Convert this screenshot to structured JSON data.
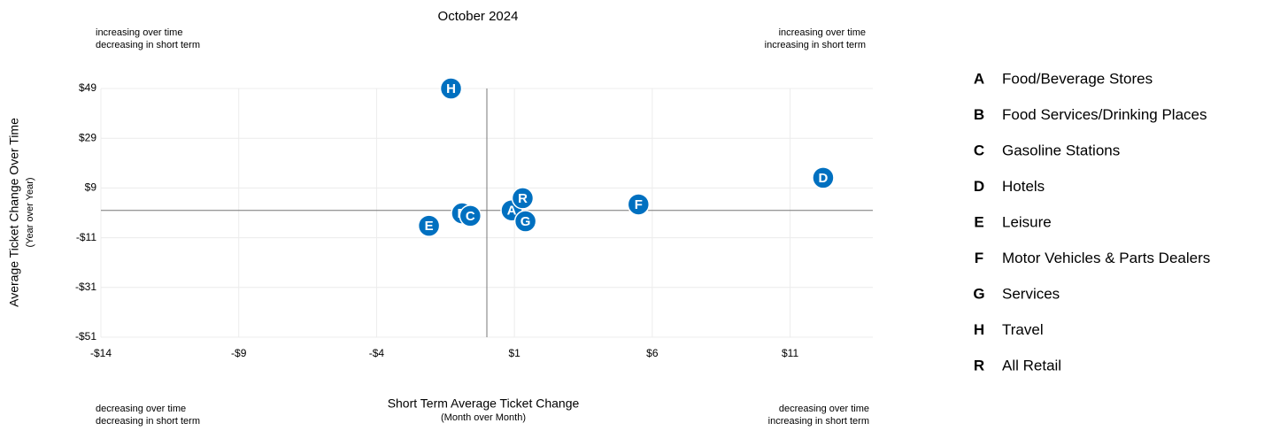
{
  "chart_data": {
    "type": "scatter",
    "title": "October 2024",
    "x_label": "Short Term Average Ticket Change",
    "x_sublabel": "(Month over Month)",
    "y_label": "Average Ticket Change Over Time",
    "y_sublabel": "(Year over Year)",
    "annotations": [
      [
        "increasing over time",
        "decreasing in short term"
      ],
      [
        "increasing over time",
        "increasing in short term"
      ],
      [
        "decreasing over time",
        "decreasing in short term"
      ],
      [
        "decreasing over time",
        "increasing in short term"
      ]
    ],
    "labels": [
      "A",
      "B",
      "C",
      "D",
      "E",
      "F",
      "G",
      "H",
      "R"
    ],
    "names": [
      "Food/Beverage Stores",
      "Food Services/Drinking Places",
      "Gasoline Stations",
      "Hotels",
      "Leisure",
      "Motor Vehicles & Parts Dealers",
      "Services",
      "Travel",
      "All Retail"
    ],
    "x": [
      0.9,
      -0.9,
      -0.6,
      12.2,
      -2.1,
      5.5,
      1.4,
      -1.3,
      1.3
    ],
    "y": [
      0,
      -1.2,
      -2.2,
      13.1,
      -6.2,
      2.4,
      -4.4,
      49,
      4.9
    ],
    "color": "#0070c0",
    "xlim": [
      -14,
      14
    ],
    "xticks": [
      {
        "value": -14,
        "label": "-$14"
      },
      {
        "value": -9,
        "label": "-$9"
      },
      {
        "value": -4,
        "label": "-$4"
      },
      {
        "value": 1,
        "label": "$1"
      },
      {
        "value": 6,
        "label": "$6"
      },
      {
        "value": 11,
        "label": "$11"
      }
    ],
    "ylim": [
      -51,
      49
    ],
    "yticks": [
      {
        "value": -51,
        "label": "-$51"
      },
      {
        "value": -31,
        "label": "-$31"
      },
      {
        "value": -11,
        "label": "-$11"
      },
      {
        "value": 9,
        "label": "$9"
      },
      {
        "value": 29,
        "label": "$29"
      },
      {
        "value": 49,
        "label": "$49"
      }
    ],
    "xref": 0,
    "yref": 0,
    "grid": true
  }
}
